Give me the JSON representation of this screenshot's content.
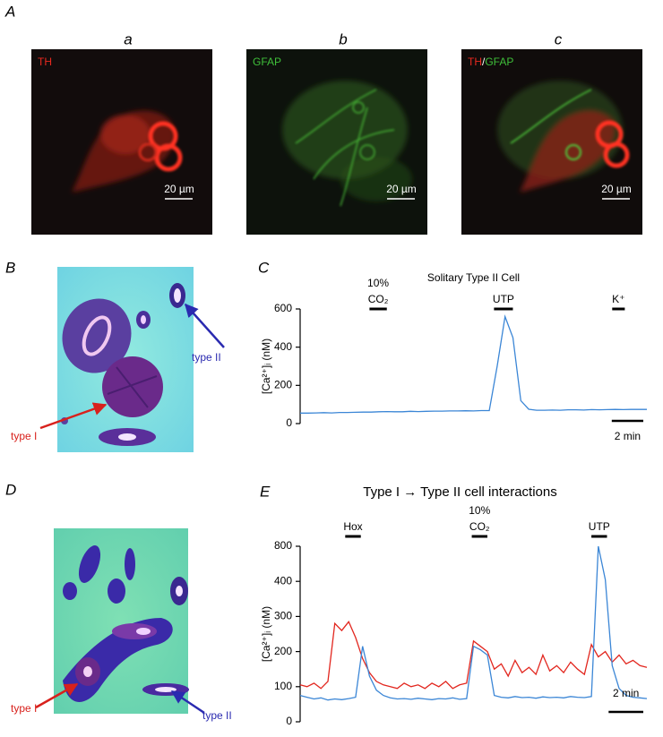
{
  "panel_A": {
    "label": "A",
    "subpanels": [
      {
        "label": "a",
        "stain": [
          {
            "text": "TH",
            "color": "#e8291f"
          }
        ],
        "scale_bar": "20 µm"
      },
      {
        "label": "b",
        "stain": [
          {
            "text": "GFAP",
            "color": "#3fbf3a"
          }
        ],
        "scale_bar": "20 µm"
      },
      {
        "label": "c",
        "stain": [
          {
            "text": "TH",
            "color": "#e8291f"
          },
          {
            "text": "/",
            "color": "#ffffff"
          },
          {
            "text": "GFAP",
            "color": "#3fbf3a"
          }
        ],
        "scale_bar": "20 µm"
      }
    ]
  },
  "panel_B": {
    "label": "B",
    "annotations": [
      {
        "text": "type I",
        "color": "#d8211c"
      },
      {
        "text": "type II",
        "color": "#2a2ab0"
      }
    ]
  },
  "panel_D": {
    "label": "D",
    "annotations": [
      {
        "text": "type I",
        "color": "#d8211c"
      },
      {
        "text": "type II",
        "color": "#2a2ab0"
      }
    ]
  },
  "chart_data": [
    {
      "panel_label": "C",
      "type": "line",
      "title": "Solitary Type II Cell",
      "y_label": "[Ca²⁺]ᵢ (nM)",
      "x": [
        0,
        0.5,
        1,
        1.5,
        2,
        2.5,
        3,
        3.5,
        4,
        4.5,
        5,
        5.5,
        6,
        6.5,
        7,
        7.5,
        8,
        8.5,
        9,
        9.5,
        10,
        10.5,
        11,
        11.5,
        12,
        12.5,
        13,
        13.5,
        14,
        14.5,
        15,
        15.5,
        16,
        16.5,
        17,
        17.5,
        18,
        18.5,
        19,
        19.5,
        20,
        20.5,
        21,
        21.5,
        22
      ],
      "xlim": [
        0,
        22
      ],
      "ylim": [
        0,
        600
      ],
      "yticks": [
        0,
        200,
        400,
        600
      ],
      "series": [
        {
          "color": "#3b86d6",
          "values": [
            55,
            55,
            56,
            57,
            56,
            58,
            58,
            59,
            60,
            60,
            62,
            63,
            62,
            62,
            64,
            63,
            64,
            65,
            65,
            66,
            66,
            67,
            66,
            68,
            68,
            300,
            560,
            450,
            120,
            75,
            70,
            70,
            71,
            70,
            72,
            72,
            71,
            73,
            72,
            73,
            74,
            73,
            74,
            74,
            74
          ]
        }
      ],
      "stimuli": [
        {
          "label": [
            "10%",
            "CO₂"
          ],
          "start": 4.4,
          "end": 5.5
        },
        {
          "label": [
            "UTP"
          ],
          "start": 12.3,
          "end": 13.5
        },
        {
          "label": [
            "K⁺"
          ],
          "start": 19.8,
          "end": 20.6
        }
      ],
      "scale_bar": {
        "label": "2 min",
        "length": 2
      }
    },
    {
      "panel_label": "E",
      "type": "line",
      "title": "Type I → Type II cell interactions",
      "y_label": "[Ca²⁺]ᵢ (nM)",
      "x": [
        0,
        0.4,
        0.8,
        1.2,
        1.6,
        2,
        2.4,
        2.8,
        3.2,
        3.6,
        4,
        4.4,
        4.8,
        5.2,
        5.6,
        6,
        6.4,
        6.8,
        7.2,
        7.6,
        8,
        8.4,
        8.8,
        9.2,
        9.6,
        10,
        10.4,
        10.8,
        11.2,
        11.6,
        12,
        12.4,
        12.8,
        13.2,
        13.6,
        14,
        14.4,
        14.8,
        15.2,
        15.6,
        16,
        16.4,
        16.8,
        17.2,
        17.6,
        18,
        18.4,
        18.8,
        19.2,
        19.6,
        20
      ],
      "xlim": [
        0,
        20
      ],
      "ylim": [
        0,
        800
      ],
      "yticks": [
        0,
        100,
        200,
        300,
        400,
        800
      ],
      "series": [
        {
          "color": "#e2261e",
          "values": [
            105,
            100,
            110,
            95,
            115,
            280,
            260,
            285,
            240,
            180,
            140,
            115,
            105,
            100,
            95,
            110,
            100,
            105,
            95,
            110,
            100,
            115,
            95,
            105,
            110,
            230,
            215,
            200,
            150,
            165,
            130,
            175,
            140,
            155,
            135,
            190,
            145,
            160,
            140,
            170,
            150,
            135,
            220,
            185,
            200,
            170,
            190,
            165,
            175,
            160,
            155
          ]
        },
        {
          "color": "#3b86d6",
          "values": [
            75,
            70,
            65,
            68,
            62,
            65,
            63,
            66,
            70,
            215,
            130,
            90,
            75,
            68,
            65,
            66,
            64,
            67,
            65,
            63,
            66,
            65,
            68,
            64,
            66,
            215,
            205,
            190,
            75,
            70,
            68,
            72,
            69,
            70,
            67,
            71,
            69,
            70,
            68,
            72,
            70,
            69,
            72,
            800,
            420,
            160,
            95,
            75,
            70,
            68,
            66
          ]
        }
      ],
      "stimuli": [
        {
          "label": [
            "Hox"
          ],
          "start": 2.6,
          "end": 3.5
        },
        {
          "label": [
            "10%",
            "CO₂"
          ],
          "start": 9.9,
          "end": 10.8
        },
        {
          "label": [
            "UTP"
          ],
          "start": 16.8,
          "end": 17.7
        }
      ],
      "scale_bar": {
        "label": "2 min",
        "length": 2
      }
    }
  ]
}
